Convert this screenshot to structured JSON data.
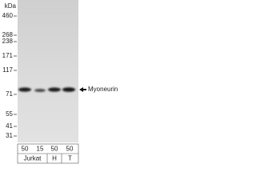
{
  "blot": {
    "unit": "kDa",
    "markers": [
      460,
      268,
      238,
      171,
      117,
      71,
      55,
      41,
      31
    ],
    "target": "Myoneurin",
    "loads": [
      50,
      15,
      50,
      50
    ],
    "cell_lines": [
      "Jurkat",
      "H",
      "T"
    ]
  }
}
